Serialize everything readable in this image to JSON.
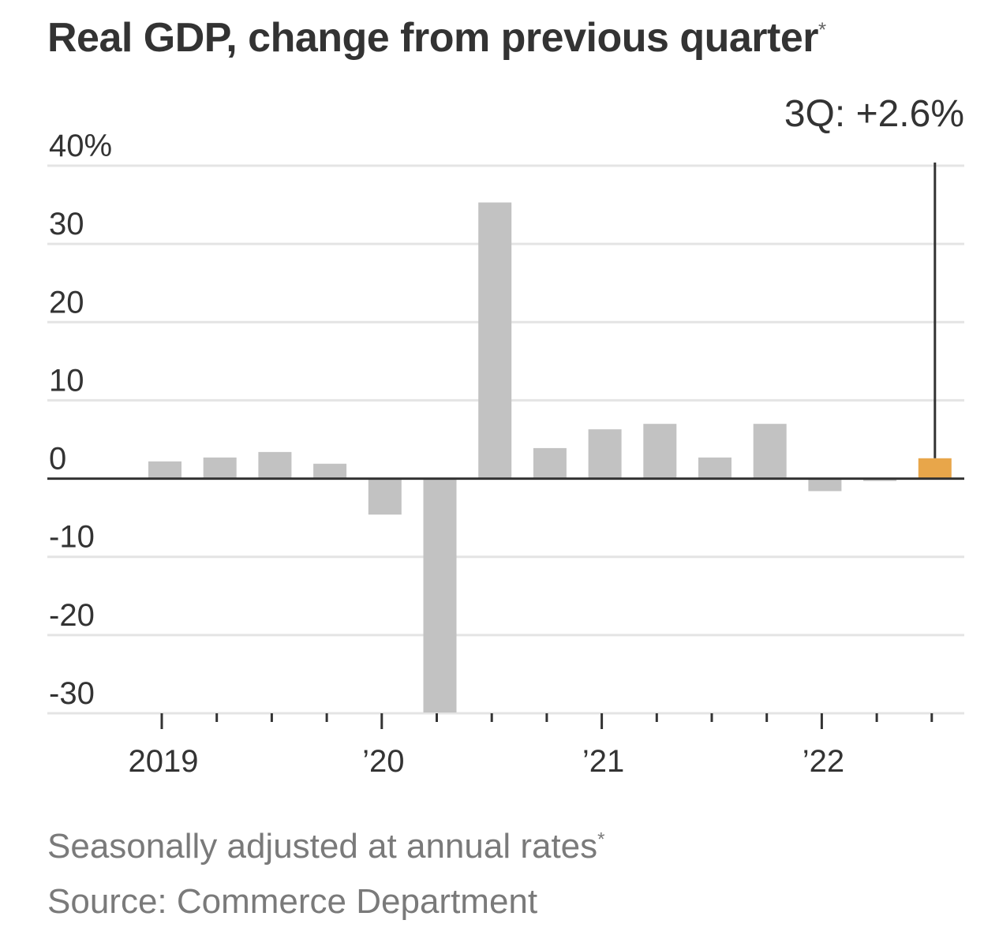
{
  "chart_data": {
    "type": "bar",
    "title": "Real GDP, change from previous quarter",
    "title_mark": "*",
    "categories": [
      "1Q 2019",
      "2Q 2019",
      "3Q 2019",
      "4Q 2019",
      "1Q 2020",
      "2Q 2020",
      "3Q 2020",
      "4Q 2020",
      "1Q 2021",
      "2Q 2021",
      "3Q 2021",
      "4Q 2021",
      "1Q 2022",
      "2Q 2022",
      "3Q 2022"
    ],
    "values": [
      2.2,
      2.7,
      3.4,
      1.9,
      -4.6,
      -29.9,
      35.3,
      3.9,
      6.3,
      7.0,
      2.7,
      7.0,
      -1.6,
      -0.3,
      2.6
    ],
    "highlight_index": 14,
    "colors": {
      "bar": "#c2c2c2",
      "highlight": "#e8a64a",
      "grid": "#e4e4e4",
      "axis": "#333333"
    },
    "ylim": [
      -30,
      40
    ],
    "yticks": [
      40,
      30,
      20,
      10,
      0,
      -10,
      -20,
      -30
    ],
    "ytick_labels": [
      "40%",
      "30",
      "20",
      "10",
      "0",
      "-10",
      "-20",
      "-30"
    ],
    "xtick_labels": [
      {
        "label": "2019",
        "index": 0
      },
      {
        "label": "’20",
        "index": 4
      },
      {
        "label": "’21",
        "index": 8
      },
      {
        "label": "’22",
        "index": 12
      }
    ],
    "annotation": "3Q: +2.6%",
    "grid": true
  },
  "notes": {
    "adjustment": "Seasonally adjusted at annual rates",
    "adjustment_mark": "*",
    "source": "Source: Commerce Department"
  }
}
